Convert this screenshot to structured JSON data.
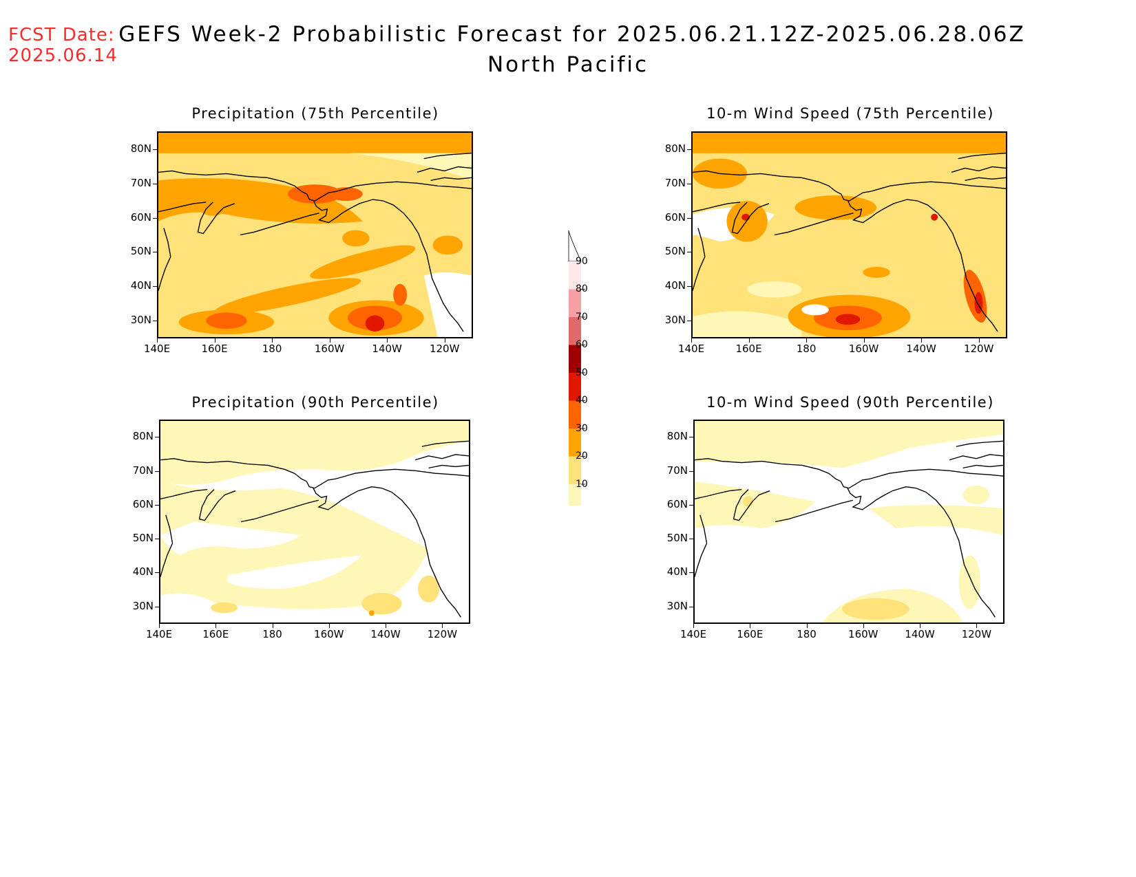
{
  "header": {
    "fcst_label": "FCST Date:",
    "fcst_date": "2025.06.14",
    "title_line1": "GEFS Week-2 Probabilistic Forecast for 2025.06.21.12Z-2025.06.28.06Z",
    "title_line2": "North Pacific"
  },
  "axes": {
    "lat_ticks": [
      "80N",
      "70N",
      "60N",
      "50N",
      "40N",
      "30N"
    ],
    "lon_ticks": [
      "140E",
      "160E",
      "180",
      "160W",
      "140W",
      "120W"
    ]
  },
  "panels": [
    {
      "id": "precip75",
      "title": "Precipitation (75th Percentile)"
    },
    {
      "id": "wind75",
      "title": "10-m Wind Speed (75th Percentile)"
    },
    {
      "id": "precip90",
      "title": "Precipitation (90th Percentile)"
    },
    {
      "id": "wind90",
      "title": "10-m Wind Speed (90th Percentile)"
    }
  ],
  "colorbar": {
    "levels": [
      "90",
      "80",
      "70",
      "60",
      "50",
      "40",
      "30",
      "20",
      "10"
    ],
    "colors": [
      "#ffe8ea",
      "#f5a0a4",
      "#e06a6a",
      "#a00000",
      "#e01800",
      "#ff6400",
      "#ffa400",
      "#ffe27a",
      "#fff7b8"
    ]
  },
  "palette": {
    "c10": "#fff7b8",
    "c20": "#ffe27a",
    "c30": "#ffa400",
    "c40": "#ff6400",
    "c50": "#e01800",
    "c60": "#a00000"
  }
}
